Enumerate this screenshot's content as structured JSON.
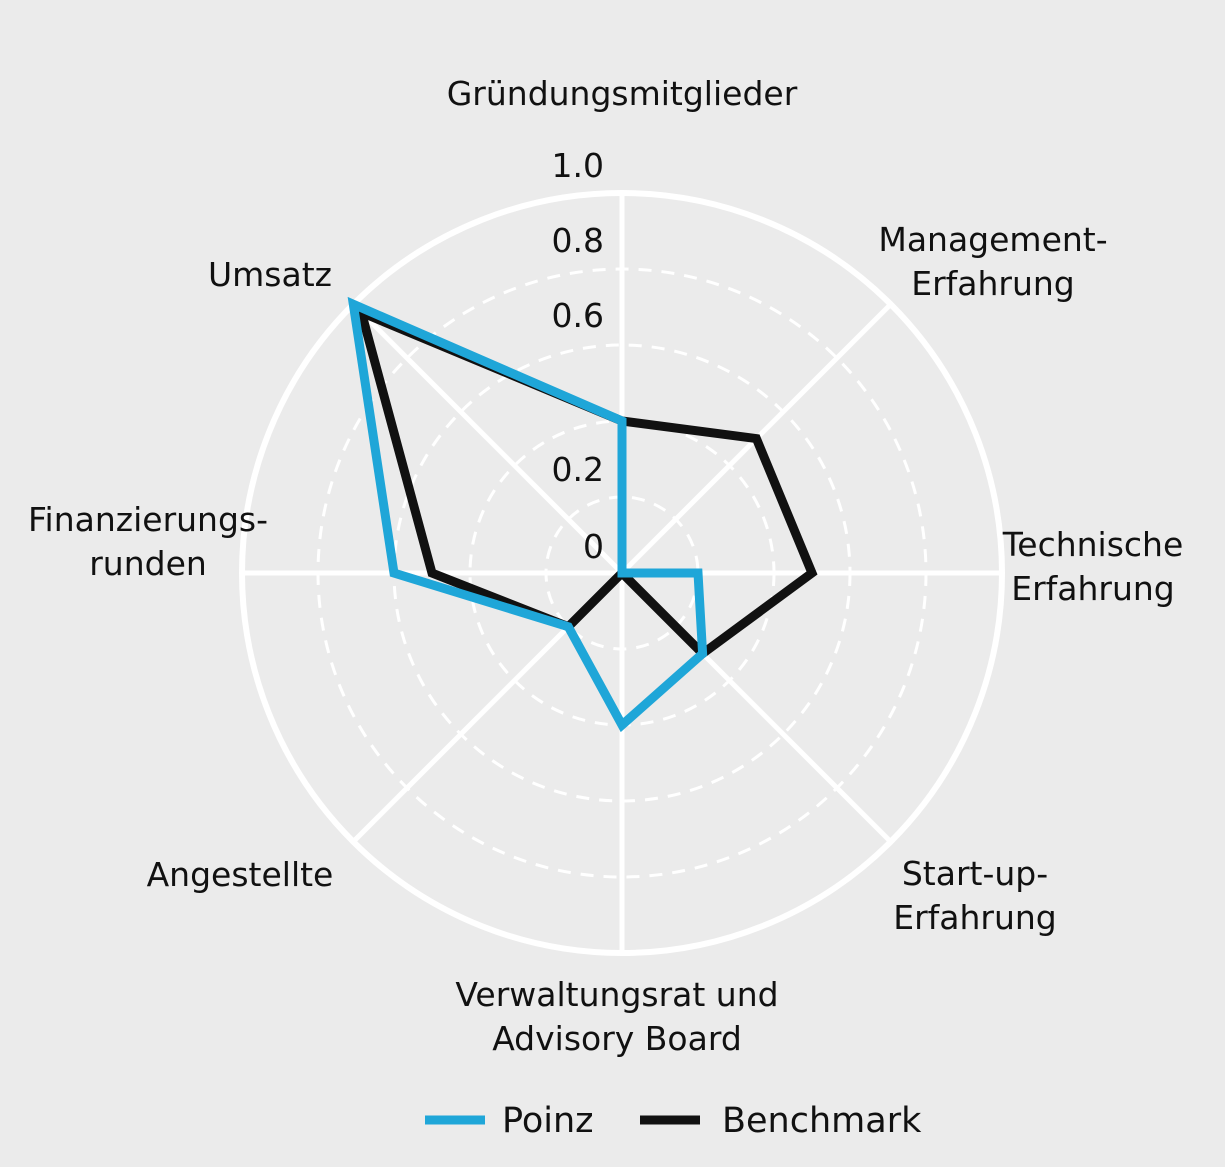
{
  "chart_data": {
    "type": "radar",
    "axes": [
      {
        "label": [
          "Gründungsmitglieder"
        ],
        "anchor": "middle"
      },
      {
        "label": [
          "Management-",
          "Erfahrung"
        ],
        "anchor": "middle"
      },
      {
        "label": [
          "Technische",
          "Erfahrung"
        ],
        "anchor": "middle"
      },
      {
        "label": [
          "Start-up-",
          "Erfahrung"
        ],
        "anchor": "middle"
      },
      {
        "label": [
          "Verwaltungsrat und",
          "Advisory Board"
        ],
        "anchor": "middle"
      },
      {
        "label": [
          "Angestellte"
        ],
        "anchor": "middle"
      },
      {
        "label": [
          "Finanzierungs-",
          "runden"
        ],
        "anchor": "middle"
      },
      {
        "label": [
          "Umsatz"
        ],
        "anchor": "middle"
      }
    ],
    "radial_ticks": [
      "0",
      "0.2",
      "0.6",
      "0.8",
      "1.0"
    ],
    "range": [
      0,
      1
    ],
    "series": [
      {
        "name": "Poinz",
        "color": "#1fa6d8",
        "values": [
          0.4,
          0.0,
          0.2,
          0.3,
          0.4,
          0.2,
          0.6,
          1.0
        ]
      },
      {
        "name": "Benchmark",
        "color": "#111111",
        "values": [
          0.4,
          0.5,
          0.5,
          0.3,
          0.0,
          0.2,
          0.5,
          0.97
        ]
      }
    ],
    "grid": true,
    "legend": "bottom",
    "background": "#ebebeb",
    "grid_color": "#ffffff"
  }
}
